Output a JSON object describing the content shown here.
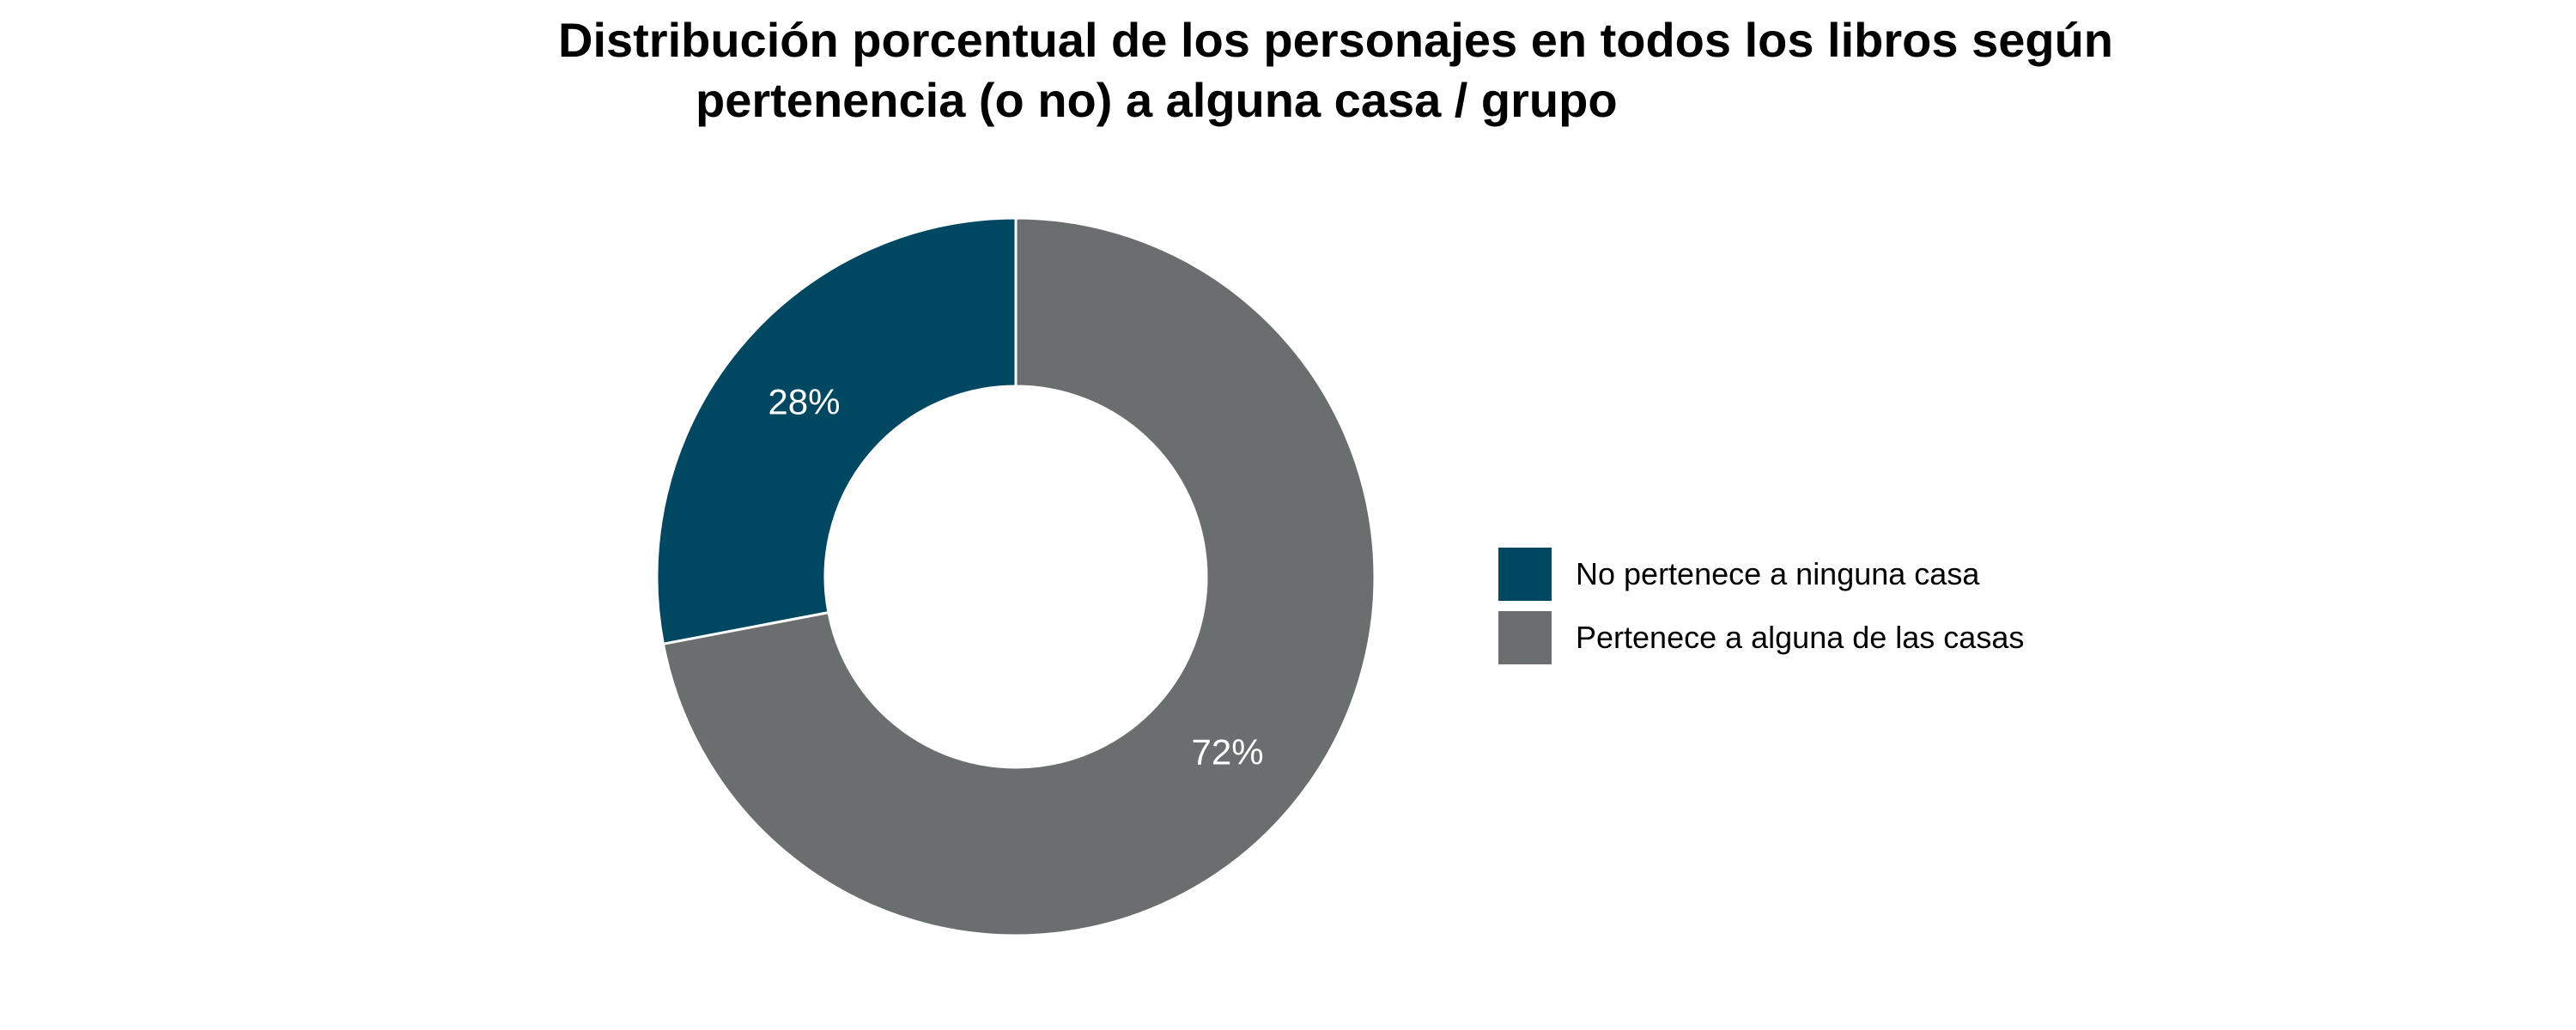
{
  "chart_data": {
    "type": "pie",
    "title_lines": [
      "Distribución porcentual de los personajes en todos los libros según",
      "pertenencia (o no) a alguna casa / grupo"
    ],
    "donut": true,
    "legend_position": "right",
    "slices": [
      {
        "name": "No pertenece a ninguna casa",
        "value": 28,
        "label": "28%",
        "color": "#004761"
      },
      {
        "name": "Pertenece a alguna de las casas",
        "value": 72,
        "label": "72%",
        "color": "#6b6e6f"
      }
    ]
  }
}
